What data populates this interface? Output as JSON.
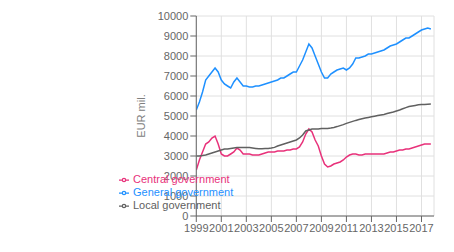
{
  "chart_data": {
    "type": "line",
    "ylabel": "EUR mil.",
    "xlim": [
      1999,
      2018.0
    ],
    "ylim": [
      0,
      10000
    ],
    "xticks": [
      1999,
      2001,
      2003,
      2005,
      2007,
      2009,
      2011,
      2013,
      2015,
      2017
    ],
    "yticks": [
      0,
      1000,
      2000,
      3000,
      4000,
      5000,
      6000,
      7000,
      8000,
      9000,
      10000
    ],
    "grid": true,
    "legend": "lower left",
    "x": [
      1999,
      1999.25,
      1999.5,
      1999.75,
      2000,
      2000.25,
      2000.5,
      2000.75,
      2001,
      2001.25,
      2001.5,
      2001.75,
      2002,
      2002.25,
      2002.5,
      2002.75,
      2003,
      2003.25,
      2003.5,
      2003.75,
      2004,
      2004.25,
      2004.5,
      2004.75,
      2005,
      2005.25,
      2005.5,
      2005.75,
      2006,
      2006.25,
      2006.5,
      2006.75,
      2007,
      2007.25,
      2007.5,
      2007.75,
      2008,
      2008.25,
      2008.5,
      2008.75,
      2009,
      2009.25,
      2009.5,
      2009.75,
      2010,
      2010.25,
      2010.5,
      2010.75,
      2011,
      2011.25,
      2011.5,
      2011.75,
      2012,
      2012.25,
      2012.5,
      2012.75,
      2013,
      2013.25,
      2013.5,
      2013.75,
      2014,
      2014.25,
      2014.5,
      2014.75,
      2015,
      2015.25,
      2015.5,
      2015.75,
      2016,
      2016.25,
      2016.5,
      2016.75,
      2017,
      2017.25,
      2017.5,
      2017.75
    ],
    "series": [
      {
        "name": "General government",
        "color": "#1e90ff",
        "values": [
          5300,
          5700,
          6200,
          6800,
          7000,
          7200,
          7400,
          7200,
          6800,
          6600,
          6500,
          6400,
          6700,
          6900,
          6700,
          6500,
          6500,
          6450,
          6450,
          6500,
          6500,
          6550,
          6600,
          6650,
          6700,
          6750,
          6800,
          6900,
          6900,
          7000,
          7100,
          7200,
          7200,
          7500,
          7800,
          8200,
          8600,
          8400,
          8000,
          7600,
          7200,
          6900,
          6900,
          7100,
          7200,
          7300,
          7350,
          7400,
          7300,
          7400,
          7600,
          7900,
          7900,
          7950,
          8000,
          8100,
          8100,
          8150,
          8200,
          8250,
          8300,
          8400,
          8500,
          8550,
          8600,
          8700,
          8800,
          8900,
          8900,
          9000,
          9100,
          9200,
          9300,
          9350,
          9400,
          9350
        ]
      },
      {
        "name": "Central government",
        "color": "#e8317a",
        "values": [
          2300,
          2800,
          3200,
          3600,
          3700,
          3900,
          4000,
          3600,
          3100,
          3000,
          3000,
          3100,
          3200,
          3400,
          3300,
          3100,
          3100,
          3100,
          3050,
          3050,
          3050,
          3100,
          3150,
          3200,
          3200,
          3200,
          3250,
          3250,
          3250,
          3300,
          3300,
          3350,
          3350,
          3450,
          3700,
          4100,
          4350,
          4200,
          3800,
          3500,
          3000,
          2600,
          2450,
          2500,
          2600,
          2650,
          2700,
          2800,
          2950,
          3050,
          3100,
          3100,
          3050,
          3050,
          3100,
          3100,
          3100,
          3100,
          3100,
          3100,
          3100,
          3150,
          3200,
          3200,
          3250,
          3300,
          3300,
          3350,
          3350,
          3400,
          3450,
          3500,
          3550,
          3600,
          3600,
          3600
        ]
      },
      {
        "name": "Local government",
        "color": "#606060",
        "values": [
          3000,
          3000,
          3020,
          3050,
          3100,
          3150,
          3200,
          3250,
          3300,
          3350,
          3350,
          3380,
          3400,
          3420,
          3430,
          3430,
          3430,
          3420,
          3400,
          3380,
          3360,
          3360,
          3370,
          3380,
          3400,
          3430,
          3500,
          3550,
          3600,
          3650,
          3700,
          3750,
          3800,
          3900,
          4050,
          4250,
          4300,
          4350,
          4350,
          4350,
          4380,
          4380,
          4380,
          4400,
          4430,
          4470,
          4520,
          4570,
          4630,
          4680,
          4730,
          4780,
          4820,
          4860,
          4900,
          4930,
          4960,
          4990,
          5020,
          5050,
          5080,
          5120,
          5160,
          5200,
          5250,
          5300,
          5360,
          5420,
          5470,
          5500,
          5530,
          5560,
          5570,
          5580,
          5590,
          5600
        ]
      }
    ]
  }
}
